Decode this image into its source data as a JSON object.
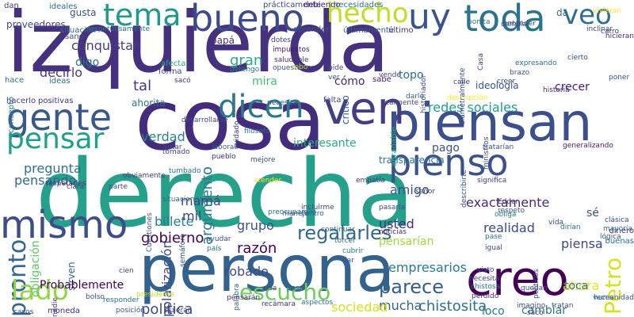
{
  "cloud": {
    "words": [
      {
        "text": "izquierda",
        "color": "#46317e",
        "vertical": false
      },
      {
        "text": "derecha",
        "color": "#25a08a",
        "vertical": false
      },
      {
        "text": "cosa",
        "color": "#432c7c",
        "vertical": false
      },
      {
        "text": "persona",
        "color": "#33628d",
        "vertical": false
      },
      {
        "text": "piensan",
        "color": "#3b4f8c",
        "vertical": false
      },
      {
        "text": "creo",
        "color": "#440154",
        "vertical": false
      },
      {
        "text": "gente",
        "color": "#38598c",
        "vertical": false
      },
      {
        "text": "pienso",
        "color": "#3b528b",
        "vertical": false
      },
      {
        "text": "mismo",
        "color": "#3e4c8a",
        "vertical": false
      },
      {
        "text": "ven",
        "color": "#423e85",
        "vertical": false
      },
      {
        "text": "bueno",
        "color": "#3e4b8a",
        "vertical": false
      },
      {
        "text": "toda",
        "color": "#2c738e",
        "vertical": false
      },
      {
        "text": "dicen",
        "color": "#2a778e",
        "vertical": false
      },
      {
        "text": "pensar",
        "color": "#1fa088",
        "vertical": false
      },
      {
        "text": "pronto",
        "color": "#31688e",
        "vertical": true
      },
      {
        "text": "tema",
        "color": "#1f9a8a",
        "vertical": false
      },
      {
        "text": "hecho",
        "color": "#bddf26",
        "vertical": false
      },
      {
        "text": "uy",
        "color": "#39568c",
        "vertical": false
      },
      {
        "text": "veo",
        "color": "#2e6f8e",
        "vertical": false
      },
      {
        "text": "lado",
        "color": "#90d743",
        "vertical": false
      },
      {
        "text": "Petro",
        "color": "#d8e219",
        "vertical": true
      },
      {
        "text": "escucho",
        "color": "#6cce59",
        "vertical": false
      },
      {
        "text": "parece",
        "color": "#355e8d",
        "vertical": false
      },
      {
        "text": "argumento",
        "color": "#2a7b8e",
        "vertical": true
      },
      {
        "text": "regalarles",
        "color": "#31688e",
        "vertical": false
      },
      {
        "text": "gobierno",
        "color": "#440154",
        "vertical": false
      },
      {
        "text": "razón",
        "color": "#440154",
        "vertical": false
      },
      {
        "text": "política",
        "color": "#3e4a89",
        "vertical": false
      },
      {
        "text": "usted",
        "color": "#472d7b",
        "vertical": false
      },
      {
        "text": "amigo",
        "color": "#3a548c",
        "vertical": false
      },
      {
        "text": "piensa",
        "color": "#3f4889",
        "vertical": false
      },
      {
        "text": "realidad",
        "color": "#3e4989",
        "vertical": false
      },
      {
        "text": "empresarios",
        "color": "#287d8e",
        "vertical": false
      },
      {
        "text": "redes sociales",
        "color": "#1fa187",
        "vertical": false
      },
      {
        "text": "exactamente",
        "color": "#472c7a",
        "vertical": false
      },
      {
        "text": "ahora",
        "color": "#e5e419",
        "vertical": false
      },
      {
        "text": "chistosita",
        "color": "#2c728e",
        "vertical": false
      },
      {
        "text": "cambiar",
        "color": "#2c718e",
        "vertical": false
      },
      {
        "text": "loco",
        "color": "#287c8e",
        "vertical": false
      },
      {
        "text": "mucha",
        "color": "#32648e",
        "vertical": false
      },
      {
        "text": "sociedad",
        "color": "#d5e21a",
        "vertical": false
      },
      {
        "text": "grupo",
        "color": "#3b518b",
        "vertical": false
      },
      {
        "text": "robado",
        "color": "#3d4e8a",
        "vertical": false
      },
      {
        "text": "billete",
        "color": "#26828e",
        "vertical": false
      },
      {
        "text": "polarización",
        "color": "#3e4a89",
        "vertical": true
      },
      {
        "text": "mil",
        "color": "#404588",
        "vertical": false
      },
      {
        "text": "mamá",
        "color": "#433e85",
        "vertical": false
      },
      {
        "text": "pregunta",
        "color": "#2c728e",
        "vertical": false
      },
      {
        "text": "obligación",
        "color": "#5ec962",
        "vertical": true
      },
      {
        "text": "verdad",
        "color": "#25858e",
        "vertical": false
      },
      {
        "text": "pensando",
        "color": "#31688e",
        "vertical": false
      },
      {
        "text": "conquistar",
        "color": "#423f85",
        "vertical": false
      },
      {
        "text": "digo",
        "color": "#2a768e",
        "vertical": false
      },
      {
        "text": "decirlo",
        "color": "#443983",
        "vertical": false
      },
      {
        "text": "tal",
        "color": "#453781",
        "vertical": false
      },
      {
        "text": "mira",
        "color": "#44bf70",
        "vertical": false
      },
      {
        "text": "gran",
        "color": "#25ab82",
        "vertical": false
      },
      {
        "text": "cómo",
        "color": "#482475",
        "vertical": false
      },
      {
        "text": "topo",
        "color": "#2f6c8e",
        "vertical": false
      },
      {
        "text": "pago",
        "color": "#3b528b",
        "vertical": false
      },
      {
        "text": "interesante",
        "color": "#29af7f",
        "vertical": false
      },
      {
        "text": "transparencia",
        "color": "#2c738e",
        "vertical": false
      },
      {
        "text": "sirven",
        "color": "#30698e",
        "vertical": true
      },
      {
        "text": "Probablemente",
        "color": "#440154",
        "vertical": false
      },
      {
        "text": "sé",
        "color": "#3b528b",
        "vertical": false
      },
      {
        "text": "toca",
        "color": "#2d718e",
        "vertical": false
      },
      {
        "text": "pensarían",
        "color": "#a0da39",
        "vertical": false
      },
      {
        "text": "ideología",
        "color": "#3a548c",
        "vertical": false
      },
      {
        "text": "crecer",
        "color": "#481a6c",
        "vertical": false
      },
      {
        "text": "proveedores",
        "color": "#3f4889",
        "vertical": false
      },
      {
        "text": "gusta",
        "color": "#3b528b",
        "vertical": false
      },
      {
        "text": "papá",
        "color": "#472c7a",
        "vertical": false
      },
      {
        "text": "crítico",
        "color": "#355e8d",
        "vertical": true
      },
      {
        "text": "da",
        "color": "#2d708e",
        "vertical": false
      },
      {
        "text": "falta",
        "color": "#414487",
        "vertical": false
      },
      {
        "text": "ahorita",
        "color": "#2c728e",
        "vertical": false
      },
      {
        "text": "positivas",
        "color": "#46327e",
        "vertical": false
      },
      {
        "text": "hacerlo",
        "color": "#453882",
        "vertical": false
      },
      {
        "text": "concepto",
        "color": "#287c8e",
        "vertical": true
      },
      {
        "text": "ideas",
        "color": "#31688e",
        "vertical": false
      },
      {
        "text": "hace",
        "color": "#2d718e",
        "vertical": false
      },
      {
        "text": "sano",
        "color": "#3e4c8a",
        "vertical": false
      },
      {
        "text": "situación",
        "color": "#32658e",
        "vertical": false
      },
      {
        "text": "ideales",
        "color": "#2e6e8e",
        "vertical": false
      },
      {
        "text": "dan",
        "color": "#443a83",
        "vertical": false
      },
      {
        "text": "prácticamente",
        "color": "#3f4788",
        "vertical": false
      },
      {
        "text": "debiendo",
        "color": "#482071",
        "vertical": false
      },
      {
        "text": "necesidades",
        "color": "#2c728e",
        "vertical": false
      },
      {
        "text": "respetuosamente",
        "color": "#2d708e",
        "vertical": false
      },
      {
        "text": "último",
        "color": "#453781",
        "vertical": false
      },
      {
        "text": "últimamente",
        "color": "#355e8d",
        "vertical": false
      },
      {
        "text": "aprender",
        "color": "#3a548c",
        "vertical": false
      },
      {
        "text": "dotes",
        "color": "#3f4788",
        "vertical": false
      },
      {
        "text": "impuestos",
        "color": "#48186a",
        "vertical": false
      },
      {
        "text": "saludable",
        "color": "#46307e",
        "vertical": false
      },
      {
        "text": "opuesto",
        "color": "#38598c",
        "vertical": false
      },
      {
        "text": "robo",
        "color": "#c2df23",
        "vertical": false
      },
      {
        "text": "afecta",
        "color": "#25ab82",
        "vertical": false
      },
      {
        "text": "forma",
        "color": "#3f4889",
        "vertical": false
      },
      {
        "text": "sacó",
        "color": "#453781",
        "vertical": false
      },
      {
        "text": "detengo",
        "color": "#2a768e",
        "vertical": false
      },
      {
        "text": "pide",
        "color": "#3b528b",
        "vertical": false
      },
      {
        "text": "ver",
        "color": "#3a548c",
        "vertical": false
      },
      {
        "text": "sabe",
        "color": "#481a6c",
        "vertical": false
      },
      {
        "text": "vende",
        "color": "#3e4c8a",
        "vertical": false
      },
      {
        "text": "historiador",
        "color": "#3e4a89",
        "vertical": true
      },
      {
        "text": "agradable",
        "color": "#22a785",
        "vertical": true
      },
      {
        "text": "realmente",
        "color": "#404588",
        "vertical": false
      },
      {
        "text": "darle",
        "color": "#31688e",
        "vertical": false
      },
      {
        "text": "descripción",
        "color": "#fde725",
        "vertical": false
      },
      {
        "text": "necesita",
        "color": "#32658e",
        "vertical": false
      },
      {
        "text": "desarrollarse",
        "color": "#3e4a89",
        "vertical": false
      },
      {
        "text": "cuidado",
        "color": "#3f4788",
        "vertical": true
      },
      {
        "text": "filósofo",
        "color": "#2c738e",
        "vertical": false
      },
      {
        "text": "votar",
        "color": "#3e4989",
        "vertical": false
      },
      {
        "text": "laboral",
        "color": "#38598c",
        "vertical": false
      },
      {
        "text": "pueblo",
        "color": "#472c7a",
        "vertical": false
      },
      {
        "text": "tomado",
        "color": "#3f4889",
        "vertical": false
      },
      {
        "text": "tumbado",
        "color": "#2a788e",
        "vertical": false
      },
      {
        "text": "mejore",
        "color": "#3a548c",
        "vertical": false
      },
      {
        "text": "atender",
        "color": "#fde725",
        "vertical": false
      },
      {
        "text": "empatía",
        "color": "#453781",
        "vertical": false
      },
      {
        "text": "preocupamos",
        "color": "#2d708e",
        "vertical": false
      },
      {
        "text": "centro",
        "color": "#32658e",
        "vertical": false
      },
      {
        "text": "manejo",
        "color": "#3a548c",
        "vertical": false
      },
      {
        "text": "incluirme",
        "color": "#3e4a89",
        "vertical": false
      },
      {
        "text": "pasaría",
        "color": "#3e4c8a",
        "vertical": false
      },
      {
        "text": "continuar",
        "color": "#2d718e",
        "vertical": false
      },
      {
        "text": "torcer",
        "color": "#30698e",
        "vertical": false
      },
      {
        "text": "cubrir",
        "color": "#25838e",
        "vertical": false
      },
      {
        "text": "dar",
        "color": "#38598c",
        "vertical": false
      },
      {
        "text": "noticias",
        "color": "#472d7b",
        "vertical": false
      },
      {
        "text": "visto",
        "color": "#3e4989",
        "vertical": false
      },
      {
        "text": "necesita",
        "color": "#404688",
        "vertical": false
      },
      {
        "text": "chistosa",
        "color": "#2d708e",
        "vertical": false
      },
      {
        "text": "quedan",
        "color": "#3b518b",
        "vertical": false
      },
      {
        "text": "pase",
        "color": "#2c728e",
        "vertical": false
      },
      {
        "text": "igual",
        "color": "#3f4889",
        "vertical": false
      },
      {
        "text": "describirte",
        "color": "#3e4a89",
        "vertical": true
      },
      {
        "text": "señor",
        "color": "#3f4788",
        "vertical": false
      },
      {
        "text": "Edder",
        "color": "#472c7a",
        "vertical": false
      },
      {
        "text": "respeto",
        "color": "#38598c",
        "vertical": false
      },
      {
        "text": "obliga",
        "color": "#2a788e",
        "vertical": false
      },
      {
        "text": "tratarían",
        "color": "#3b528b",
        "vertical": false
      },
      {
        "text": "generalizando",
        "color": "#482475",
        "vertical": false
      },
      {
        "text": "significa",
        "color": "#453781",
        "vertical": false
      },
      {
        "text": "ministros",
        "color": "#3e4a89",
        "vertical": true
      },
      {
        "text": "dinero",
        "color": "#472d7b",
        "vertical": false
      },
      {
        "text": "mayoría",
        "color": "#2c718e",
        "vertical": false
      },
      {
        "text": "clásica",
        "color": "#3e4c8a",
        "vertical": false
      },
      {
        "text": "lógica",
        "color": "#3b528b",
        "vertical": false
      },
      {
        "text": "políticos",
        "color": "#404588",
        "vertical": true
      },
      {
        "text": "buenas",
        "color": "#2c738e",
        "vertical": false
      },
      {
        "text": "veces",
        "color": "#25848e",
        "vertical": false
      },
      {
        "text": "dirían",
        "color": "#2c728e",
        "vertical": false
      },
      {
        "text": "vida",
        "color": "#3e4a89",
        "vertical": false
      },
      {
        "text": "perdido",
        "color": "#472c7a",
        "vertical": false
      },
      {
        "text": "imagino",
        "color": "#3e4989",
        "vertical": false
      },
      {
        "text": "saco",
        "color": "#3f4788",
        "vertical": false
      },
      {
        "text": "tratan",
        "color": "#3e4c8a",
        "vertical": false
      },
      {
        "text": "humanidad",
        "color": "#3b528b",
        "vertical": false
      },
      {
        "text": "aspectos",
        "color": "#2d708e",
        "vertical": false
      },
      {
        "text": "pasa",
        "color": "#30698e",
        "vertical": false
      },
      {
        "text": "palabra",
        "color": "#32658e",
        "vertical": true
      },
      {
        "text": "risa",
        "color": "#3e4a89",
        "vertical": false
      },
      {
        "text": "recámara",
        "color": "#453781",
        "vertical": false
      },
      {
        "text": "pensarán",
        "color": "#472d7b",
        "vertical": false
      },
      {
        "text": "quieran",
        "color": "#3f4889",
        "vertical": false
      },
      {
        "text": "posición",
        "color": "#38598c",
        "vertical": false
      },
      {
        "text": "presidente",
        "color": "#bddf26",
        "vertical": false
      },
      {
        "text": "responder",
        "color": "#2c728e",
        "vertical": false
      },
      {
        "text": "bolso",
        "color": "#3e4c8a",
        "vertical": false
      },
      {
        "text": "nadie",
        "color": "#404588",
        "vertical": true
      },
      {
        "text": "casos",
        "color": "#3b518b",
        "vertical": false
      },
      {
        "text": "moneda",
        "color": "#472c7a",
        "vertical": false
      },
      {
        "text": "cien",
        "color": "#3e4989",
        "vertical": false
      },
      {
        "text": "país",
        "color": "#2d708e",
        "vertical": false
      },
      {
        "text": "ayudar",
        "color": "#3b528b",
        "vertical": false
      },
      {
        "text": "semáforo",
        "color": "#3e4a89",
        "vertical": true
      },
      {
        "text": "Cuestiones",
        "color": "#38598c",
        "vertical": true
      },
      {
        "text": "situaciones",
        "color": "#2c738e",
        "vertical": false
      },
      {
        "text": "parte",
        "color": "#3e4c8a",
        "vertical": false
      },
      {
        "text": "obviamente",
        "color": "#453781",
        "vertical": false
      },
      {
        "text": "clara",
        "color": "#3f4889",
        "vertical": false
      },
      {
        "text": "respetarles",
        "color": "#472d7b",
        "vertical": false
      },
      {
        "text": "entender",
        "color": "#3b528b",
        "vertical": false
      },
      {
        "text": "bonita",
        "color": "#2d708e",
        "vertical": false
      },
      {
        "text": "cambia",
        "color": "#3e4a89",
        "vertical": false
      },
      {
        "text": "vivieran",
        "color": "#fde725",
        "vertical": false
      },
      {
        "text": "inclinar",
        "color": "#3e4989",
        "vertical": false
      },
      {
        "text": "carro",
        "color": "#3f4788",
        "vertical": false
      },
      {
        "text": "hicieran",
        "color": "#472c7a",
        "vertical": false
      },
      {
        "text": "brazo",
        "color": "#38598c",
        "vertical": false
      },
      {
        "text": "creer",
        "color": "#3b518b",
        "vertical": false
      },
      {
        "text": "expresando",
        "color": "#2c728e",
        "vertical": false
      },
      {
        "text": "cierto",
        "color": "#3e4c8a",
        "vertical": false
      },
      {
        "text": "calle",
        "color": "#404588",
        "vertical": false
      },
      {
        "text": "diametralmente",
        "color": "#3e4a89",
        "vertical": true
      },
      {
        "text": "Casa",
        "color": "#3e4989",
        "vertical": true
      },
      {
        "text": "historia",
        "color": "#472d7b",
        "vertical": false
      },
      {
        "text": "poner",
        "color": "#38598c",
        "vertical": false
      }
    ]
  }
}
